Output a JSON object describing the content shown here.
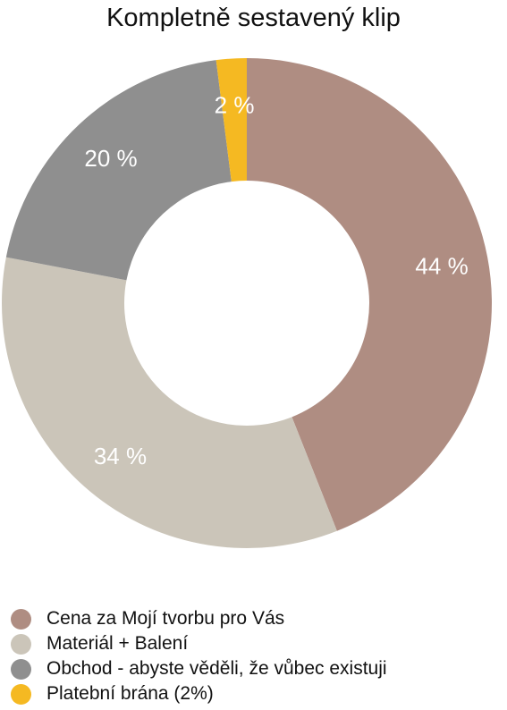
{
  "chart_data": {
    "type": "pie",
    "variant": "donut",
    "title": "Kompletně sestavený klip",
    "slices": [
      {
        "label": "Cena za Mojí tvorbu pro Vás",
        "value": 44,
        "display": "44 %",
        "color": "#af8d82"
      },
      {
        "label": "Materiál + Balení",
        "value": 34,
        "display": "34 %",
        "color": "#cbc5b9"
      },
      {
        "label": "Obchod - abyste věděli, že vůbec existuji",
        "value": 20,
        "display": "20 %",
        "color": "#8f8f8f"
      },
      {
        "label": "Platební brána (2%)",
        "value": 2,
        "display": "2 %",
        "color": "#f5b922"
      }
    ],
    "legend_position": "bottom-left",
    "label_color": "#ffffff"
  }
}
